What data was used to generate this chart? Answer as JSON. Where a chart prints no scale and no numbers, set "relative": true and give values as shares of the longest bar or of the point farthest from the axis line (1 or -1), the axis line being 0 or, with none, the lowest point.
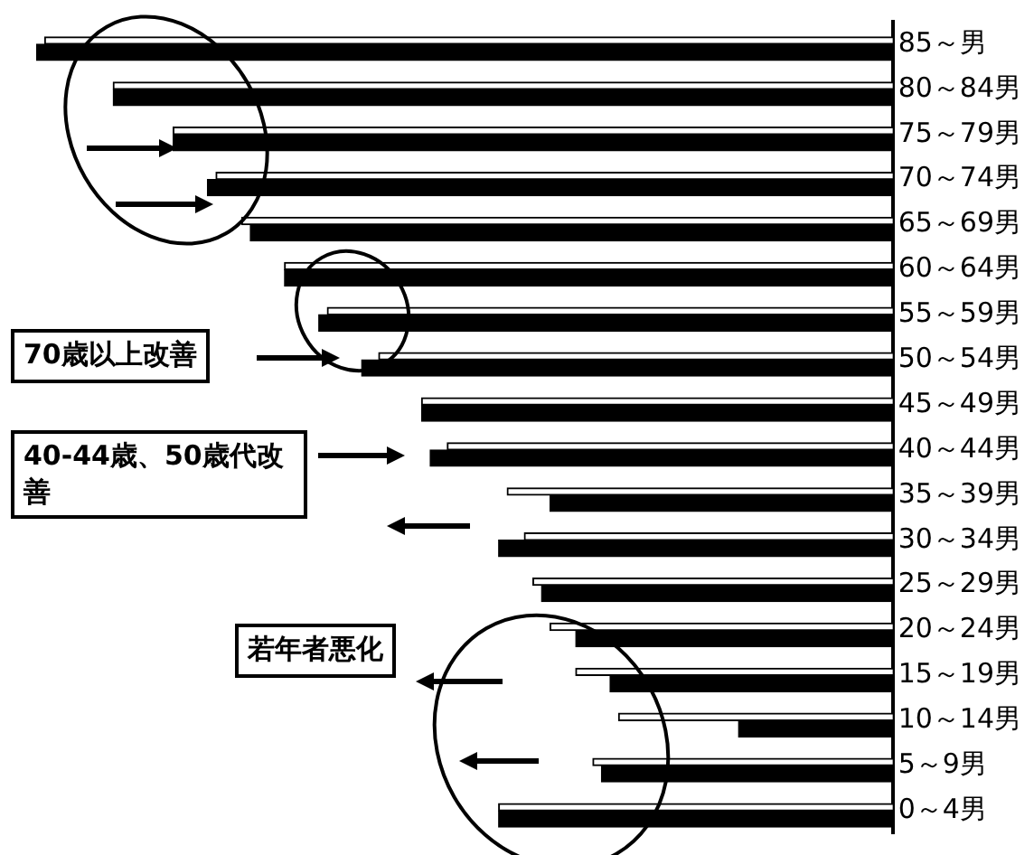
{
  "chart_data": {
    "type": "bar",
    "orientation": "horizontal",
    "relative": true,
    "legend": false,
    "grid": false,
    "categories": [
      "85～男",
      "80～84男",
      "75～79男",
      "70～74男",
      "65～69男",
      "60～64男",
      "55～59男",
      "50～54男",
      "45～49男",
      "40～44男",
      "35～39男",
      "30～34男",
      "25～29男",
      "20～24男",
      "15～19男",
      "10～14男",
      "5～9男",
      "0～4男"
    ],
    "series": [
      {
        "color": "#ffffff",
        "values": [
          0.99,
          0.91,
          0.84,
          0.79,
          0.76,
          0.71,
          0.66,
          0.6,
          0.55,
          0.52,
          0.45,
          0.43,
          0.42,
          0.4,
          0.37,
          0.32,
          0.35,
          0.46
        ]
      },
      {
        "color": "#000000",
        "values": [
          1,
          0.91,
          0.84,
          0.8,
          0.75,
          0.71,
          0.67,
          0.62,
          0.55,
          0.54,
          0.4,
          0.46,
          0.41,
          0.37,
          0.33,
          0.18,
          0.34,
          0.46
        ]
      }
    ],
    "annotations": [
      "70歳以上改善",
      "40-44歳、50歳代改善",
      "若年者悪化"
    ]
  }
}
